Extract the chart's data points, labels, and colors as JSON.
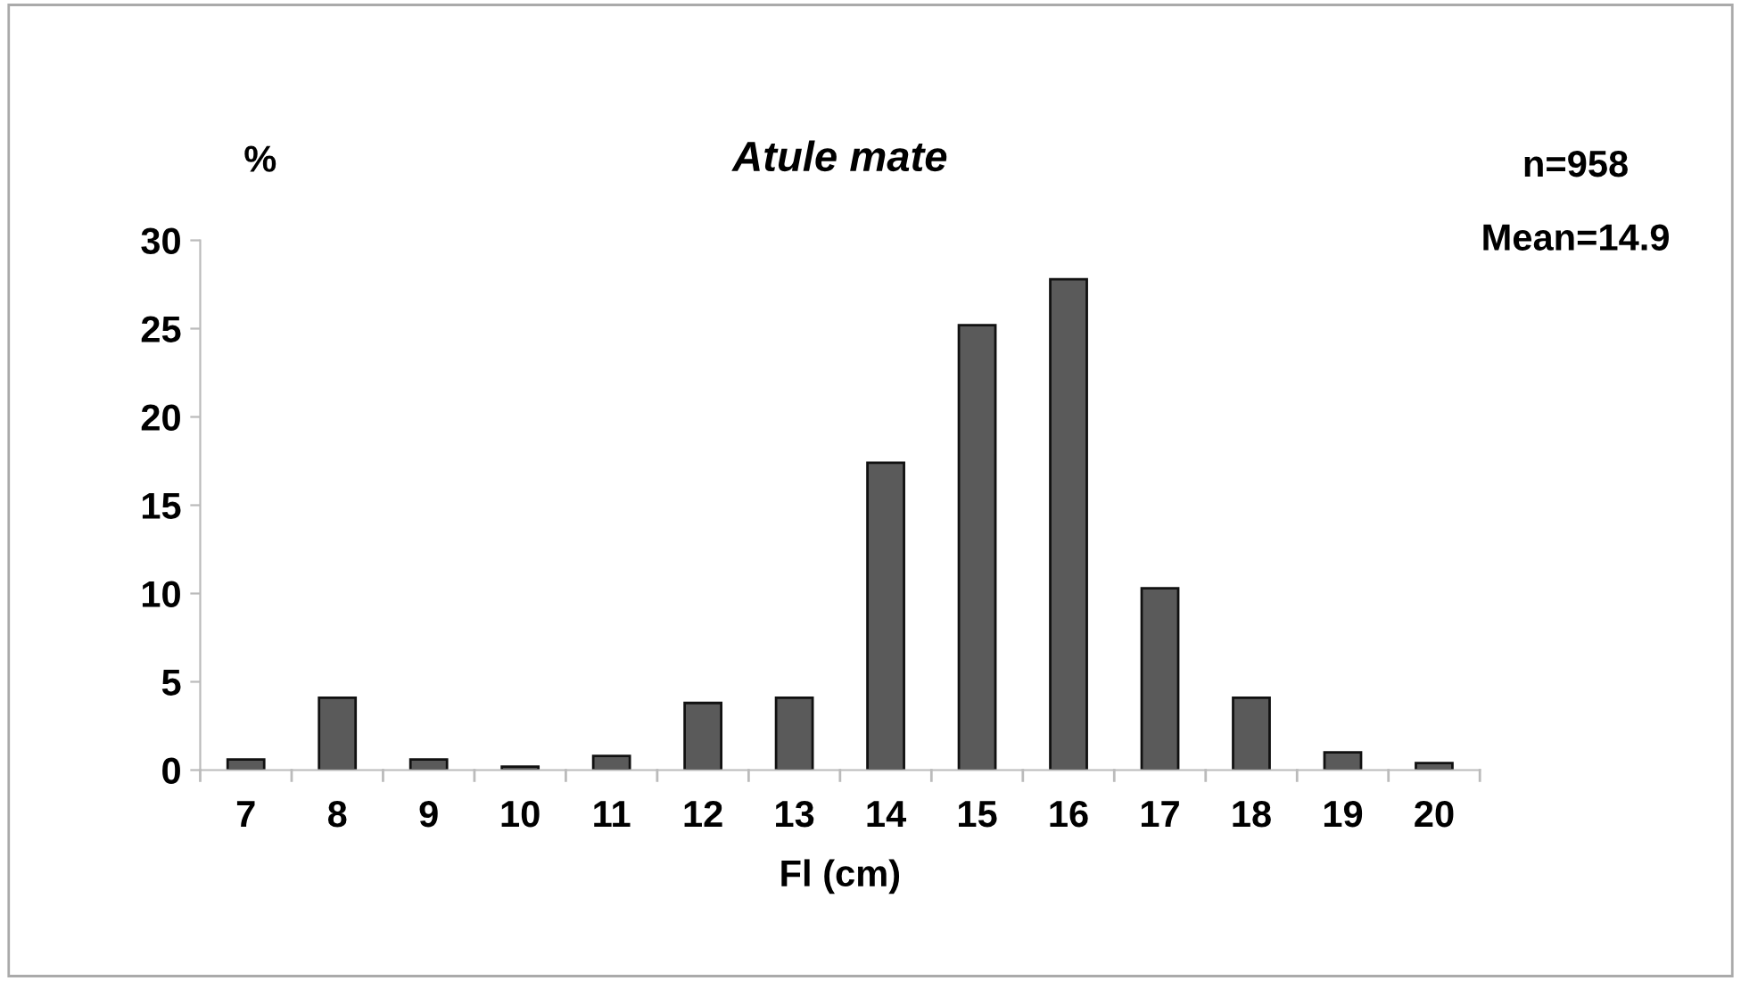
{
  "chart_data": {
    "type": "bar",
    "title": "Atule mate",
    "ylabel": "%",
    "xlabel": "Fl (cm)",
    "categories": [
      "7",
      "8",
      "9",
      "10",
      "11",
      "12",
      "13",
      "14",
      "15",
      "16",
      "17",
      "18",
      "19",
      "20"
    ],
    "values": [
      0.6,
      4.1,
      0.6,
      0.2,
      0.8,
      3.8,
      4.1,
      17.4,
      25.2,
      27.8,
      10.3,
      4.1,
      1.0,
      0.4
    ],
    "color": "#5a5a5a",
    "ylim": [
      0,
      30
    ],
    "yticks": [
      0,
      5,
      10,
      15,
      20,
      25,
      30
    ],
    "grid": false,
    "annotations": [
      "n=958",
      "Mean=14.9"
    ]
  }
}
